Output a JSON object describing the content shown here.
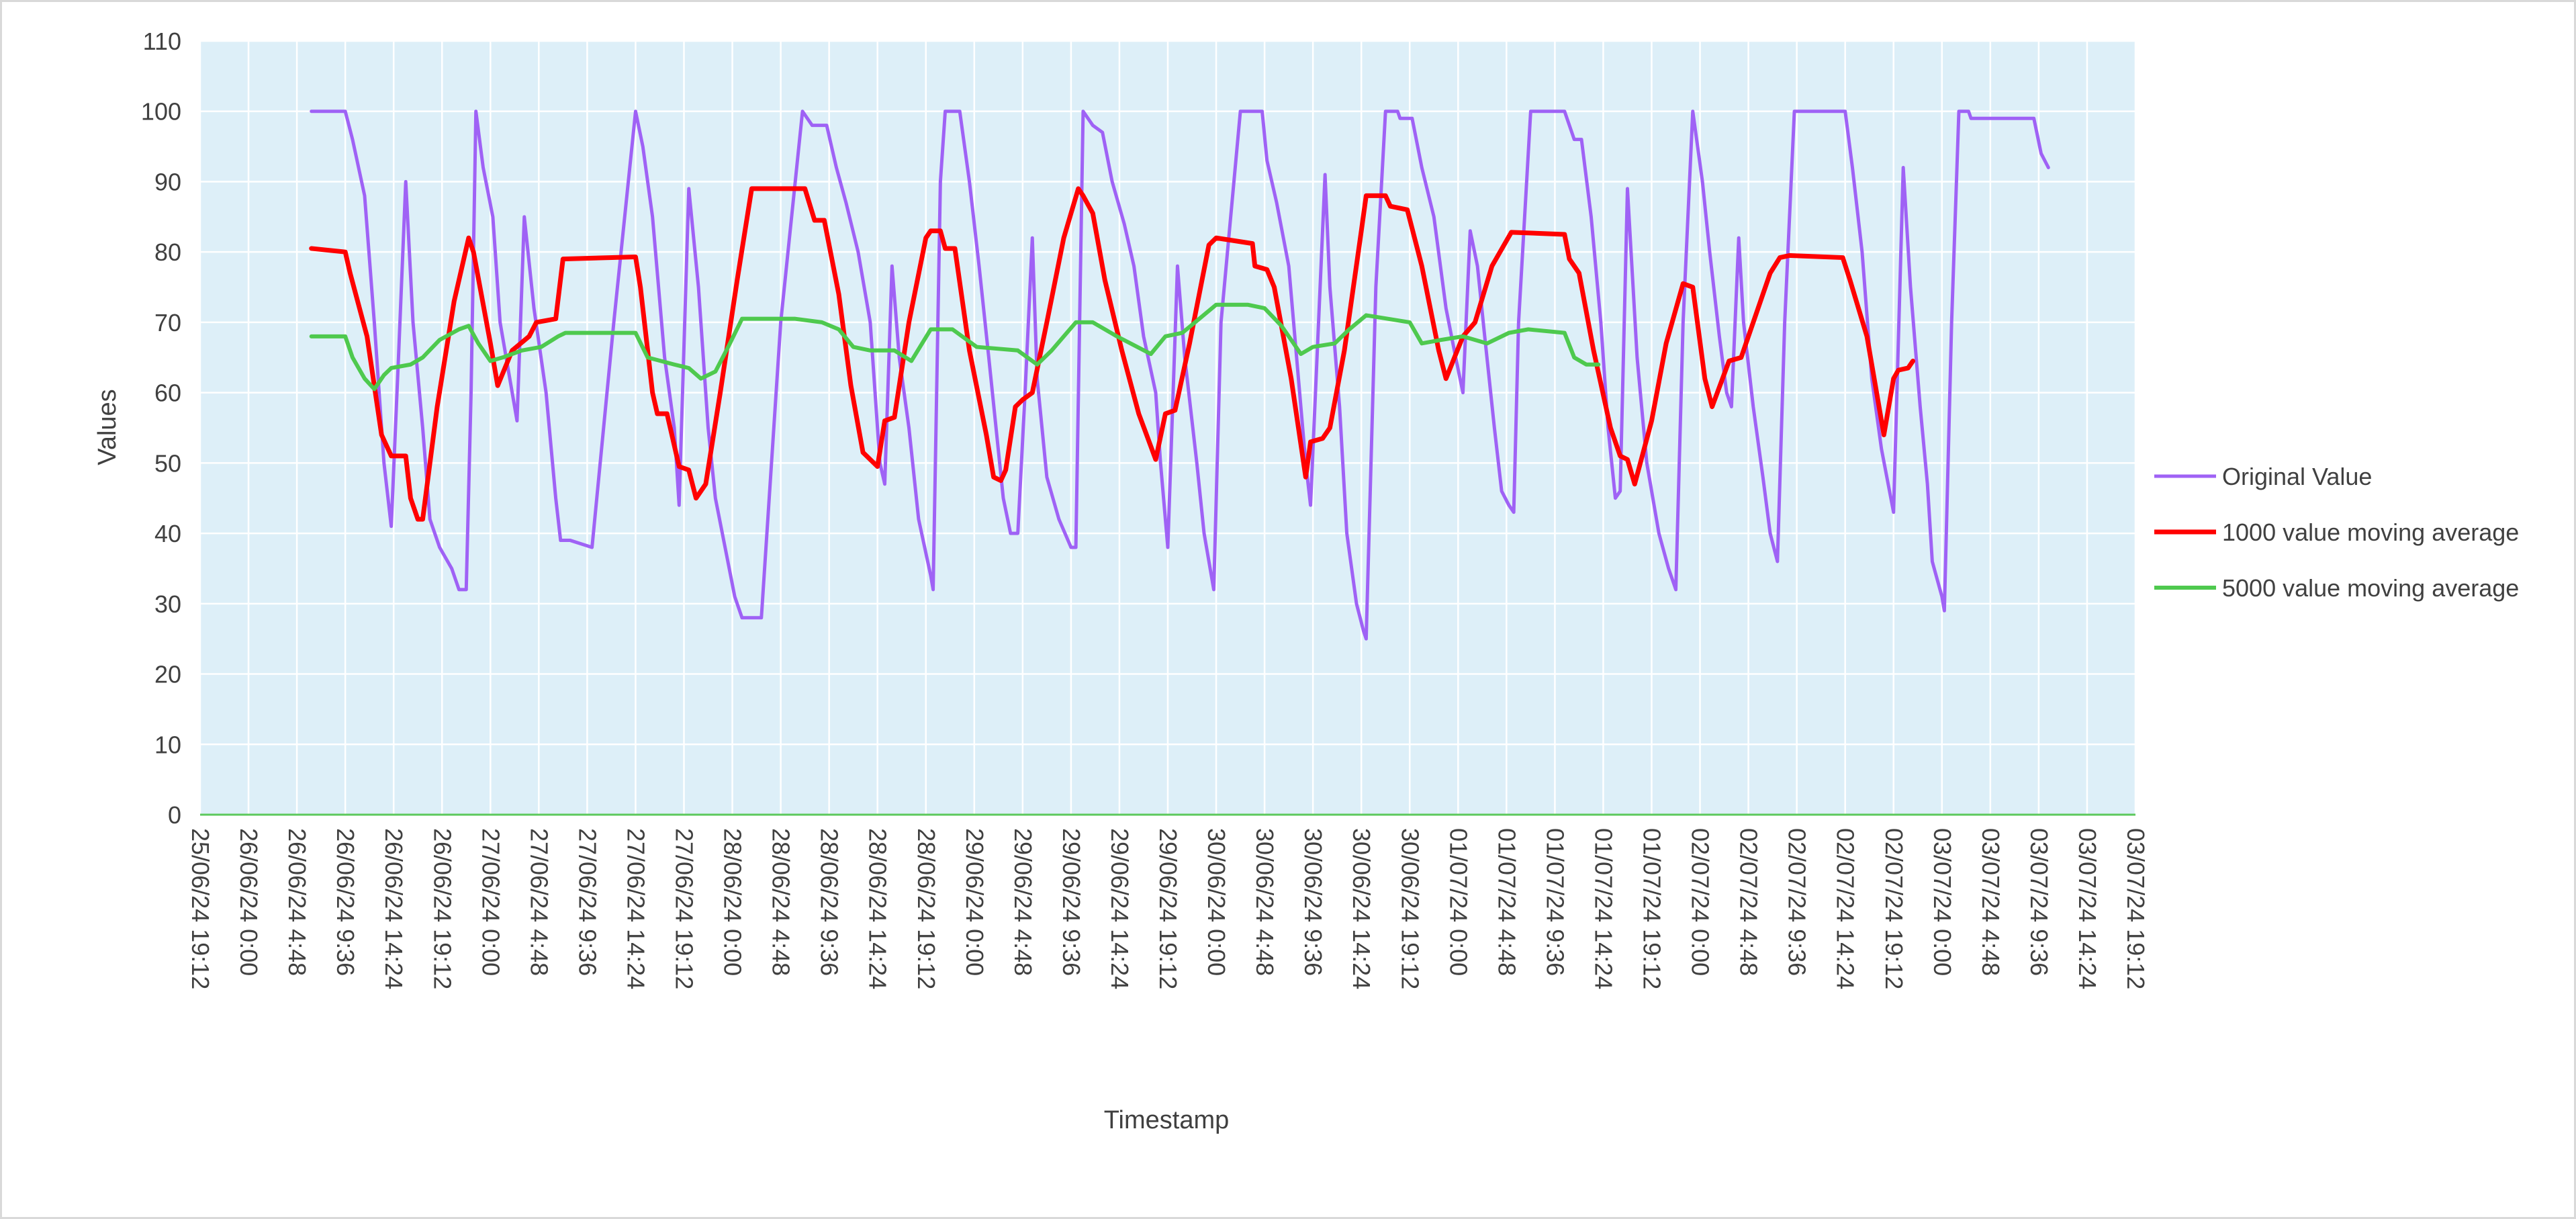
{
  "chart_data": {
    "type": "line",
    "x_label": "Timestamp",
    "y_label": "Values",
    "xlim": [
      45468.8,
      45476.8
    ],
    "ylim": [
      0,
      110
    ],
    "yticks": [
      0,
      10,
      20,
      30,
      40,
      50,
      60,
      70,
      80,
      90,
      100,
      110
    ],
    "xticks": [
      {
        "value": 45468.8,
        "label": "25/06/24 19:12"
      },
      {
        "value": 45469.0,
        "label": "26/06/24 0:00"
      },
      {
        "value": 45469.2,
        "label": "26/06/24 4:48"
      },
      {
        "value": 45469.4,
        "label": "26/06/24 9:36"
      },
      {
        "value": 45469.6,
        "label": "26/06/24 14:24"
      },
      {
        "value": 45469.8,
        "label": "26/06/24 19:12"
      },
      {
        "value": 45470.0,
        "label": "27/06/24 0:00"
      },
      {
        "value": 45470.2,
        "label": "27/06/24 4:48"
      },
      {
        "value": 45470.4,
        "label": "27/06/24 9:36"
      },
      {
        "value": 45470.6,
        "label": "27/06/24 14:24"
      },
      {
        "value": 45470.8,
        "label": "27/06/24 19:12"
      },
      {
        "value": 45471.0,
        "label": "28/06/24 0:00"
      },
      {
        "value": 45471.2,
        "label": "28/06/24 4:48"
      },
      {
        "value": 45471.4,
        "label": "28/06/24 9:36"
      },
      {
        "value": 45471.6,
        "label": "28/06/24 14:24"
      },
      {
        "value": 45471.8,
        "label": "28/06/24 19:12"
      },
      {
        "value": 45472.0,
        "label": "29/06/24 0:00"
      },
      {
        "value": 45472.2,
        "label": "29/06/24 4:48"
      },
      {
        "value": 45472.4,
        "label": "29/06/24 9:36"
      },
      {
        "value": 45472.6,
        "label": "29/06/24 14:24"
      },
      {
        "value": 45472.8,
        "label": "29/06/24 19:12"
      },
      {
        "value": 45473.0,
        "label": "30/06/24 0:00"
      },
      {
        "value": 45473.2,
        "label": "30/06/24 4:48"
      },
      {
        "value": 45473.4,
        "label": "30/06/24 9:36"
      },
      {
        "value": 45473.6,
        "label": "30/06/24 14:24"
      },
      {
        "value": 45473.8,
        "label": "30/06/24 19:12"
      },
      {
        "value": 45474.0,
        "label": "01/07/24 0:00"
      },
      {
        "value": 45474.2,
        "label": "01/07/24 4:48"
      },
      {
        "value": 45474.4,
        "label": "01/07/24 9:36"
      },
      {
        "value": 45474.6,
        "label": "01/07/24 14:24"
      },
      {
        "value": 45474.8,
        "label": "01/07/24 19:12"
      },
      {
        "value": 45475.0,
        "label": "02/07/24 0:00"
      },
      {
        "value": 45475.2,
        "label": "02/07/24 4:48"
      },
      {
        "value": 45475.4,
        "label": "02/07/24 9:36"
      },
      {
        "value": 45475.6,
        "label": "02/07/24 14:24"
      },
      {
        "value": 45475.8,
        "label": "02/07/24 19:12"
      },
      {
        "value": 45476.0,
        "label": "03/07/24 0:00"
      },
      {
        "value": 45476.2,
        "label": "03/07/24 4:48"
      },
      {
        "value": 45476.4,
        "label": "03/07/24 9:36"
      },
      {
        "value": 45476.6,
        "label": "03/07/24 14:24"
      },
      {
        "value": 45476.8,
        "label": "03/07/24 19:12"
      }
    ],
    "grid": true,
    "legend": "right",
    "plot_background": "#ddeff8",
    "series": [
      {
        "name": "Original Value",
        "color": "#9f62f5",
        "x": [
          45469.26,
          45469.4,
          45469.43,
          45469.48,
          45469.52,
          45469.56,
          45469.59,
          45469.62,
          45469.65,
          45469.68,
          45469.72,
          45469.75,
          45469.79,
          45469.84,
          45469.87,
          45469.9,
          45469.92,
          45469.94,
          45469.97,
          45470.01,
          45470.04,
          45470.08,
          45470.11,
          45470.14,
          45470.18,
          45470.23,
          45470.27,
          45470.29,
          45470.33,
          45470.42,
          45470.51,
          45470.6,
          45470.63,
          45470.67,
          45470.72,
          45470.76,
          45470.78,
          45470.82,
          45470.86,
          45470.9,
          45470.93,
          45470.97,
          45471.01,
          45471.04,
          45471.12,
          45471.2,
          45471.29,
          45471.33,
          45471.39,
          45471.43,
          45471.47,
          45471.52,
          45471.57,
          45471.61,
          45471.63,
          45471.66,
          45471.69,
          45471.73,
          45471.77,
          45471.82,
          45471.83,
          45471.86,
          45471.88,
          45471.94,
          45471.98,
          45472.02,
          45472.06,
          45472.09,
          45472.12,
          45472.15,
          45472.18,
          45472.21,
          45472.24,
          45472.26,
          45472.3,
          45472.35,
          45472.4,
          45472.42,
          45472.45,
          45472.49,
          45472.53,
          45472.57,
          45472.62,
          45472.66,
          45472.7,
          45472.75,
          45472.77,
          45472.8,
          45472.84,
          45472.87,
          45472.92,
          45472.95,
          45472.98,
          45472.99,
          45473.02,
          45473.1,
          45473.19,
          45473.21,
          45473.25,
          45473.3,
          45473.34,
          45473.37,
          45473.39,
          45473.45,
          45473.47,
          45473.51,
          45473.54,
          45473.58,
          45473.61,
          45473.62,
          45473.66,
          45473.7,
          45473.75,
          45473.76,
          45473.81,
          45473.85,
          45473.9,
          45473.95,
          45473.99,
          45474.02,
          45474.05,
          45474.08,
          45474.11,
          45474.15,
          45474.18,
          45474.21,
          45474.23,
          45474.25,
          45474.3,
          45474.44,
          45474.48,
          45474.51,
          45474.55,
          45474.59,
          45474.62,
          45474.65,
          45474.67,
          45474.7,
          45474.74,
          45474.78,
          45474.83,
          45474.87,
          45474.9,
          45474.93,
          45474.97,
          45475.01,
          45475.04,
          45475.08,
          45475.11,
          45475.13,
          45475.16,
          45475.18,
          45475.22,
          45475.26,
          45475.29,
          45475.32,
          45475.35,
          45475.39,
          45475.6,
          45475.63,
          45475.67,
          45475.71,
          45475.75,
          45475.8,
          45475.84,
          45475.87,
          45475.91,
          45475.94,
          45475.96,
          45476.0,
          45476.01,
          45476.04,
          45476.07,
          45476.11,
          45476.12,
          45476.38,
          45476.41,
          45476.44
        ],
        "values": [
          100,
          100,
          96,
          88,
          70,
          50,
          41,
          65,
          90,
          70,
          55,
          42,
          38,
          35,
          32,
          32,
          60,
          100,
          92,
          85,
          70,
          62,
          56,
          85,
          72,
          60,
          45,
          39,
          39,
          38,
          70,
          100,
          95,
          85,
          65,
          55,
          44,
          89,
          75,
          55,
          45,
          38,
          31,
          28,
          28,
          70,
          100,
          98,
          98,
          92,
          87,
          80,
          70,
          50,
          47,
          78,
          65,
          55,
          42,
          34,
          32,
          90,
          100,
          100,
          90,
          78,
          65,
          55,
          45,
          40,
          40,
          60,
          82,
          62,
          48,
          42,
          38,
          38,
          100,
          98,
          97,
          90,
          84,
          78,
          68,
          60,
          50,
          38,
          78,
          65,
          50,
          40,
          34,
          32,
          70,
          100,
          100,
          93,
          87,
          78,
          62,
          50,
          44,
          91,
          75,
          58,
          40,
          30,
          26,
          25,
          75,
          100,
          100,
          99,
          99,
          92,
          85,
          72,
          65,
          60,
          83,
          78,
          68,
          55,
          46,
          44,
          43,
          70,
          100,
          100,
          96,
          96,
          85,
          70,
          55,
          45,
          46,
          89,
          65,
          50,
          40,
          35,
          32,
          70,
          100,
          90,
          80,
          68,
          60,
          58,
          82,
          70,
          58,
          48,
          40,
          36,
          70,
          100,
          100,
          92,
          80,
          62,
          52,
          43,
          92,
          75,
          58,
          47,
          36,
          31,
          29,
          70,
          100,
          100,
          99,
          99,
          94,
          92
        ]
      },
      {
        "name": "1000 value moving average",
        "color": "#ff0000",
        "x": [
          45469.26,
          45469.4,
          45469.42,
          45469.49,
          45469.55,
          45469.59,
          45469.65,
          45469.67,
          45469.7,
          45469.72,
          45469.78,
          45469.85,
          45469.91,
          45469.93,
          45470.0,
          45470.03,
          45470.09,
          45470.16,
          45470.19,
          45470.27,
          45470.3,
          45470.6,
          45470.62,
          45470.67,
          45470.69,
          45470.73,
          45470.78,
          45470.82,
          45470.85,
          45470.89,
          45470.95,
          45471.02,
          45471.08,
          45471.3,
          45471.34,
          45471.38,
          45471.44,
          45471.49,
          45471.54,
          45471.6,
          45471.63,
          45471.67,
          45471.73,
          45471.8,
          45471.82,
          45471.86,
          45471.88,
          45471.92,
          45471.98,
          45472.05,
          45472.08,
          45472.11,
          45472.13,
          45472.17,
          45472.2,
          45472.24,
          45472.3,
          45472.37,
          45472.43,
          45472.45,
          45472.49,
          45472.54,
          45472.61,
          45472.68,
          45472.75,
          45472.79,
          45472.83,
          45472.89,
          45472.97,
          45473.0,
          45473.15,
          45473.16,
          45473.21,
          45473.24,
          45473.31,
          45473.37,
          45473.39,
          45473.44,
          45473.47,
          45473.53,
          45473.6,
          45473.62,
          45473.7,
          45473.72,
          45473.79,
          45473.85,
          45473.92,
          45473.95,
          45474.02,
          45474.07,
          45474.14,
          45474.22,
          45474.44,
          45474.46,
          45474.5,
          45474.56,
          45474.63,
          45474.67,
          45474.7,
          45474.73,
          45474.8,
          45474.86,
          45474.93,
          45474.97,
          45475.02,
          45475.05,
          45475.12,
          45475.17,
          45475.23,
          45475.29,
          45475.33,
          45475.37,
          45475.59,
          45475.62,
          45475.69,
          45475.72,
          45475.76,
          45475.8,
          45475.82,
          45475.86,
          45475.88
        ],
        "values": [
          80.5,
          80,
          77,
          68,
          54,
          51,
          51,
          45,
          42,
          42,
          58,
          73,
          82,
          80,
          67,
          61,
          66,
          68,
          70,
          70.5,
          79,
          79.3,
          75,
          60,
          57,
          57,
          49.5,
          49,
          45,
          47,
          60,
          76,
          89,
          89,
          84.5,
          84.5,
          74,
          61,
          51.5,
          49.5,
          56,
          56.5,
          70,
          82,
          83,
          83,
          80.5,
          80.5,
          66,
          54,
          48,
          47.5,
          49,
          58,
          59,
          60,
          70,
          82,
          89,
          88,
          85.5,
          76,
          66,
          57,
          50.5,
          57,
          57.5,
          67,
          81,
          82,
          81.2,
          78,
          77.5,
          75,
          62,
          48,
          53,
          53.5,
          55,
          66,
          83,
          88,
          88,
          86.5,
          86,
          78,
          66,
          62,
          68,
          70,
          78,
          82.8,
          82.5,
          79,
          77,
          66,
          55,
          51,
          50.5,
          47,
          56,
          67,
          75.5,
          75,
          62,
          58,
          64.5,
          65,
          71,
          77,
          79.2,
          79.5,
          79.2,
          76,
          68,
          62,
          54,
          62,
          63.2,
          63.5,
          64.5
        ]
      },
      {
        "name": "5000 value moving average",
        "color": "#4ec94e",
        "x": [
          45469.26,
          45469.4,
          45469.43,
          45469.48,
          45469.52,
          45469.56,
          45469.59,
          45469.67,
          45469.72,
          45469.79,
          45469.87,
          45469.91,
          45469.95,
          45470.0,
          45470.05,
          45470.13,
          45470.21,
          45470.28,
          45470.31,
          45470.6,
          45470.65,
          45470.76,
          45470.82,
          45470.87,
          45470.93,
          45470.99,
          45471.04,
          45471.26,
          45471.37,
          45471.44,
          45471.5,
          45471.57,
          45471.67,
          45471.74,
          45471.82,
          45471.91,
          45472.01,
          45472.18,
          45472.26,
          45472.32,
          45472.42,
          45472.49,
          45472.59,
          45472.73,
          45472.79,
          45472.86,
          45473.0,
          45473.13,
          45473.2,
          45473.27,
          45473.35,
          45473.4,
          45473.49,
          45473.55,
          45473.62,
          45473.71,
          45473.8,
          45473.85,
          45473.93,
          45474.02,
          45474.12,
          45474.21,
          45474.29,
          45474.44,
          45474.48,
          45474.53,
          45474.58
        ],
        "values": [
          68,
          68,
          65,
          62,
          60.5,
          62.5,
          63.5,
          64,
          65,
          67.5,
          69,
          69.5,
          67,
          64.5,
          65,
          66,
          66.5,
          68,
          68.5,
          68.5,
          65,
          64,
          63.5,
          62,
          63,
          67,
          70.5,
          70.5,
          70,
          69,
          66.5,
          66,
          66,
          64.5,
          69,
          69,
          66.5,
          66,
          64,
          66,
          70,
          70,
          68,
          65.5,
          68,
          68.5,
          72.5,
          72.5,
          72,
          69.5,
          65.5,
          66.5,
          67,
          69,
          71,
          70.5,
          70,
          67,
          67.5,
          68,
          67,
          68.5,
          69,
          68.5,
          65,
          64,
          64
        ]
      }
    ]
  }
}
